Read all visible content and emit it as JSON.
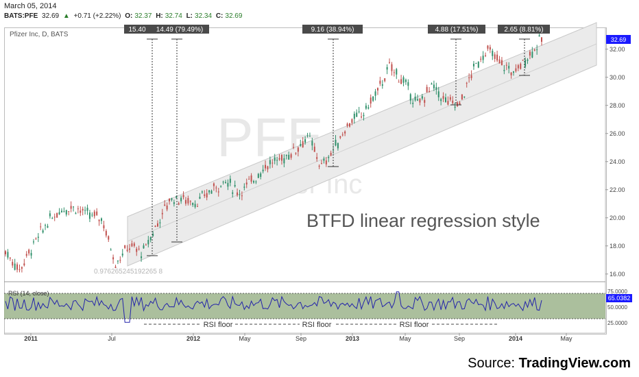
{
  "header": {
    "date": "March 05, 2014",
    "symbol": "BATS:PFE",
    "last": "32.69",
    "change": "+0.71 (+2.22%)",
    "o_label": "O:",
    "o_value": "32.37",
    "h_label": "H:",
    "h_value": "32.74",
    "l_label": "L:",
    "l_value": "32.34",
    "c_label": "C:",
    "c_value": "32.69"
  },
  "chart": {
    "pane_title": "Pfizer Inc, D, BATS",
    "watermark_symbol": "PFE, D",
    "watermark_name": "Pfizer Inc",
    "caption": "BTFD linear regression style",
    "pearson_value": "0.976265245192265 8",
    "price_badge": "32.69",
    "colors": {
      "channel": "#dcdcdc",
      "candle_up": "#2f8f6a",
      "candle_down": "#c0504d",
      "badge": "#1a1aff",
      "rsi_line": "#2222aa",
      "rsi_fill": "#9cb48c"
    }
  },
  "measurements": [
    {
      "label": "15.40"
    },
    {
      "label": "14.49 (79.49%)"
    },
    {
      "label": "9.16 (38.94%)"
    },
    {
      "label": "4.88 (17.51%)"
    },
    {
      "label": "2.65 (8.81%)"
    }
  ],
  "rsi": {
    "title": "RSI (14, close)",
    "value_badge": "65.0382",
    "floor_label": "RSI floor",
    "upper_level": "75.0000",
    "mid_level": "50.0000",
    "lower_level": "25.0000"
  },
  "x_axis": [
    "2011",
    "Jul",
    "2012",
    "May",
    "Sep",
    "2013",
    "May",
    "Sep",
    "2014",
    "May"
  ],
  "chart_data": {
    "type": "candlestick",
    "title": "Pfizer Inc, D, BATS",
    "ylim": [
      15.5,
      33.5
    ],
    "y_ticks": [
      "16.00",
      "18.00",
      "20.00",
      "22.00",
      "24.00",
      "26.00",
      "28.00",
      "30.00",
      "32.00"
    ],
    "x_ticks": [
      "2011",
      "Jul",
      "2012",
      "May",
      "Sep",
      "2013",
      "May",
      "Sep",
      "2014",
      "May"
    ],
    "approx_close_path": [
      [
        "2010-12",
        17.6
      ],
      [
        "2011-01",
        16.3
      ],
      [
        "2011-02",
        18.0
      ],
      [
        "2011-03",
        19.6
      ],
      [
        "2011-04",
        20.6
      ],
      [
        "2011-05",
        20.8
      ],
      [
        "2011-06",
        20.2
      ],
      [
        "2011-07",
        20.0
      ],
      [
        "2011-08",
        16.8
      ],
      [
        "2011-09",
        18.0
      ],
      [
        "2011-10",
        17.5
      ],
      [
        "2011-11",
        19.5
      ],
      [
        "2011-12",
        21.4
      ],
      [
        "2012-01",
        21.3
      ],
      [
        "2012-02",
        21.1
      ],
      [
        "2012-03",
        22.0
      ],
      [
        "2012-04",
        22.6
      ],
      [
        "2012-05",
        21.8
      ],
      [
        "2012-06",
        22.7
      ],
      [
        "2012-07",
        23.8
      ],
      [
        "2012-08",
        24.1
      ],
      [
        "2012-09",
        24.8
      ],
      [
        "2012-10",
        25.8
      ],
      [
        "2012-11",
        23.6
      ],
      [
        "2012-12",
        25.1
      ],
      [
        "2013-01",
        26.8
      ],
      [
        "2013-02",
        27.4
      ],
      [
        "2013-03",
        28.9
      ],
      [
        "2013-04",
        30.8
      ],
      [
        "2013-05",
        29.6
      ],
      [
        "2013-06",
        28.0
      ],
      [
        "2013-07",
        29.4
      ],
      [
        "2013-08",
        28.3
      ],
      [
        "2013-09",
        28.0
      ],
      [
        "2013-10",
        30.5
      ],
      [
        "2013-11",
        32.0
      ],
      [
        "2013-12",
        31.0
      ],
      [
        "2014-01",
        30.3
      ],
      [
        "2014-02",
        31.5
      ],
      [
        "2014-03",
        32.69
      ]
    ]
  }
}
